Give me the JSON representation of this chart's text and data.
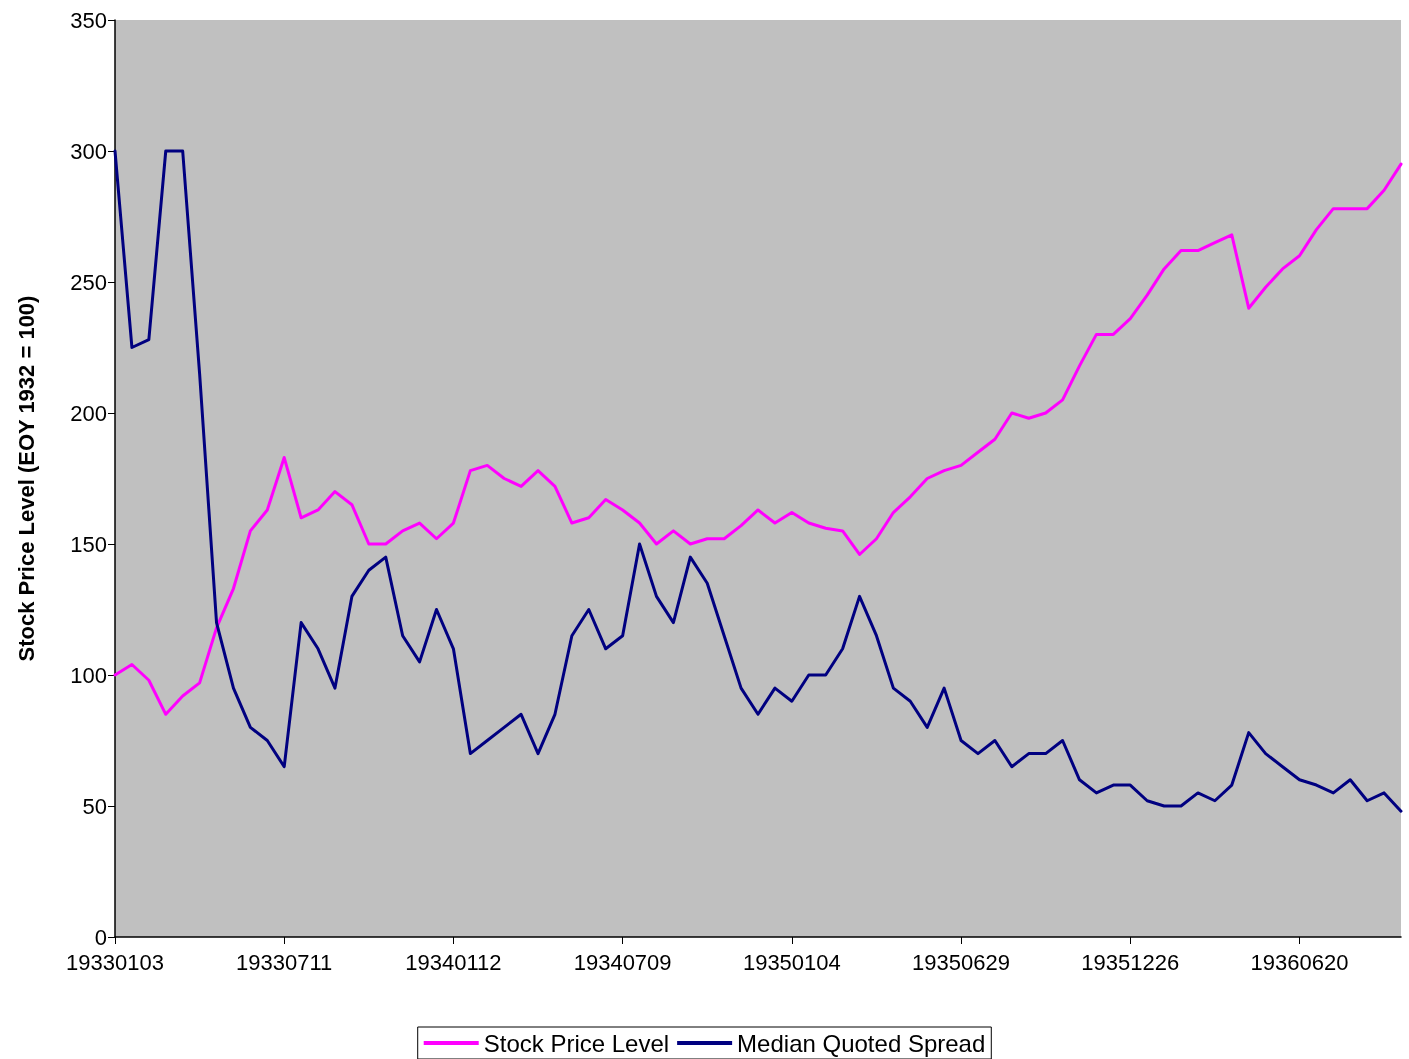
{
  "chart_data": {
    "type": "line",
    "ylabel": "Stock Price Level (EOY 1932 = 100)",
    "categories": [
      "19330103",
      null,
      null,
      null,
      null,
      null,
      null,
      null,
      null,
      null,
      "19330711",
      null,
      null,
      null,
      null,
      null,
      null,
      null,
      null,
      null,
      "19340112",
      null,
      null,
      null,
      null,
      null,
      null,
      null,
      null,
      null,
      "19340709",
      null,
      null,
      null,
      null,
      null,
      null,
      null,
      null,
      null,
      "19350104",
      null,
      null,
      null,
      null,
      null,
      null,
      null,
      null,
      null,
      "19350629",
      null,
      null,
      null,
      null,
      null,
      null,
      null,
      null,
      null,
      "19351226",
      null,
      null,
      null,
      null,
      null,
      null,
      null,
      null,
      null,
      "19360620",
      null,
      null,
      null,
      null,
      null,
      null
    ],
    "series": [
      {
        "name": "Stock Price Level",
        "color": "#ff00ff",
        "values": [
          100,
          104,
          98,
          85,
          92,
          97,
          118,
          133,
          155,
          163,
          183,
          160,
          163,
          170,
          165,
          150,
          150,
          155,
          158,
          152,
          158,
          178,
          180,
          175,
          172,
          178,
          172,
          158,
          160,
          167,
          163,
          158,
          150,
          155,
          150,
          152,
          152,
          157,
          163,
          158,
          162,
          158,
          156,
          155,
          146,
          152,
          162,
          168,
          175,
          178,
          180,
          185,
          190,
          200,
          198,
          200,
          205,
          218,
          230,
          230,
          236,
          245,
          255,
          262,
          262,
          265,
          268,
          240,
          248,
          255,
          260,
          270,
          278,
          278,
          278,
          285,
          295
        ]
      },
      {
        "name": "Median Quoted Spread",
        "color": "#000080",
        "values": [
          300,
          225,
          228,
          300,
          300,
          215,
          120,
          95,
          80,
          75,
          65,
          120,
          110,
          95,
          130,
          140,
          145,
          115,
          105,
          125,
          110,
          70,
          75,
          80,
          85,
          70,
          85,
          115,
          125,
          110,
          115,
          150,
          130,
          120,
          145,
          135,
          115,
          95,
          85,
          95,
          90,
          100,
          100,
          110,
          130,
          115,
          95,
          90,
          80,
          95,
          75,
          70,
          75,
          65,
          70,
          70,
          75,
          60,
          55,
          58,
          58,
          52,
          50,
          50,
          55,
          52,
          58,
          78,
          70,
          65,
          60,
          58,
          55,
          60,
          52,
          55,
          48
        ]
      }
    ],
    "ylim": [
      0,
      350
    ],
    "yticks": [
      0,
      50,
      100,
      150,
      200,
      250,
      300,
      350
    ],
    "legend": "bottom",
    "marker": "none",
    "line_style": "solid"
  }
}
